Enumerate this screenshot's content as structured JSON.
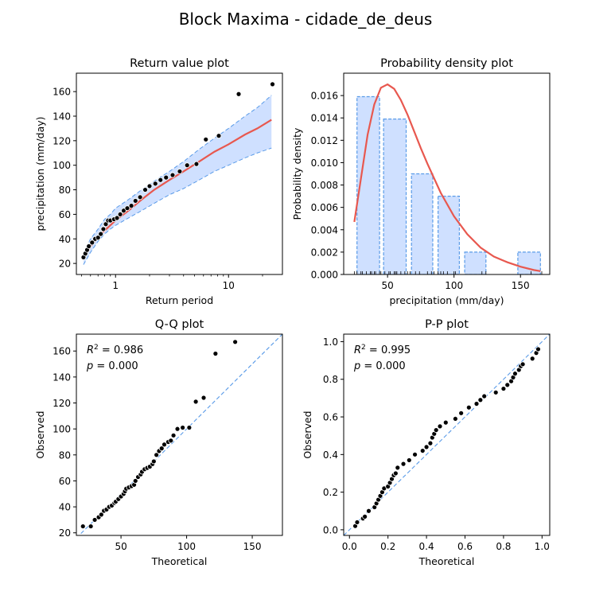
{
  "figure": {
    "title": "Block Maxima - cidade_de_deus",
    "colors": {
      "fit_line": "#e8584f",
      "band_fill": "#cfe0ff",
      "band_edge": "#5a9be8",
      "points": "#000000",
      "reference_line": "#5a9be8"
    }
  },
  "chart_data": [
    {
      "id": "return-value",
      "type": "scatter",
      "title": "Return value plot",
      "xlabel": "Return period",
      "ylabel": "precipitation (mm/day)",
      "xscale": "log",
      "xlim": [
        0.45,
        30
      ],
      "ylim": [
        11,
        175
      ],
      "xticks": [
        1,
        10
      ],
      "xtick_labels": [
        "1",
        "10"
      ],
      "yticks": [
        20,
        40,
        60,
        80,
        100,
        120,
        140,
        160
      ],
      "fit_line": {
        "x": [
          0.52,
          0.6,
          0.7,
          0.85,
          1.0,
          1.3,
          1.7,
          2.2,
          3.0,
          4.0,
          5.5,
          7.5,
          10,
          14,
          18,
          24
        ],
        "y": [
          24,
          34,
          42,
          49,
          55,
          63,
          72,
          80,
          88,
          95,
          103,
          111,
          117,
          125,
          130,
          137
        ]
      },
      "ci_upper": {
        "x": [
          0.52,
          0.6,
          0.7,
          0.8,
          0.9,
          1.0,
          1.3,
          1.7,
          2.2,
          3.0,
          4.0,
          5.5,
          7.5,
          10,
          14,
          18,
          24
        ],
        "y": [
          28,
          40,
          48,
          56,
          60,
          65,
          72,
          80,
          87,
          95,
          103,
          113,
          122,
          130,
          140,
          147,
          157
        ]
      },
      "ci_lower": {
        "x": [
          0.52,
          0.6,
          0.7,
          0.8,
          0.9,
          1.0,
          1.3,
          1.7,
          2.2,
          3.0,
          4.0,
          5.5,
          7.5,
          10,
          14,
          18,
          24
        ],
        "y": [
          19,
          29,
          38,
          44,
          48,
          51,
          57,
          63,
          69,
          76,
          81,
          88,
          95,
          100,
          106,
          110,
          114
        ]
      },
      "points": {
        "x": [
          0.52,
          0.54,
          0.56,
          0.58,
          0.62,
          0.66,
          0.7,
          0.74,
          0.78,
          0.82,
          0.86,
          0.9,
          0.97,
          1.03,
          1.1,
          1.18,
          1.27,
          1.38,
          1.5,
          1.65,
          1.83,
          2.0,
          2.25,
          2.5,
          2.8,
          3.2,
          3.7,
          4.3,
          5.2,
          6.3,
          8.2,
          12.3,
          24.5
        ],
        "y": [
          25,
          28,
          31,
          34,
          37,
          40,
          41,
          44,
          48,
          52,
          55,
          55,
          56,
          57,
          60,
          63,
          65,
          67,
          71,
          74,
          80,
          83,
          85,
          88,
          90,
          92,
          95,
          100,
          101,
          121,
          124,
          158,
          166
        ]
      }
    },
    {
      "id": "pdf",
      "type": "bar",
      "title": "Probability density plot",
      "xlabel": "precipitation (mm/day)",
      "ylabel": "Probability density",
      "xlim": [
        17,
        172
      ],
      "ylim": [
        0,
        0.018
      ],
      "xticks": [
        50,
        100,
        150
      ],
      "yticks": [
        0.0,
        0.002,
        0.004,
        0.006,
        0.008,
        0.01,
        0.012,
        0.014,
        0.016
      ],
      "ytick_labels": [
        "0.000",
        "0.002",
        "0.004",
        "0.006",
        "0.008",
        "0.010",
        "0.012",
        "0.014",
        "0.016"
      ],
      "bins": [
        [
          27,
          44
        ],
        [
          47,
          64
        ],
        [
          68,
          84
        ],
        [
          88,
          104
        ],
        [
          108,
          124
        ],
        [
          148,
          165
        ]
      ],
      "values": [
        0.0159,
        0.0139,
        0.009,
        0.007,
        0.002,
        0.002
      ],
      "density_curve": {
        "x": [
          25,
          30,
          35,
          40,
          45,
          50,
          55,
          60,
          65,
          70,
          75,
          80,
          90,
          100,
          110,
          120,
          130,
          140,
          150,
          160,
          165
        ],
        "y": [
          0.0047,
          0.0086,
          0.0125,
          0.0152,
          0.0167,
          0.017,
          0.0166,
          0.0156,
          0.0143,
          0.0128,
          0.0113,
          0.0099,
          0.0073,
          0.0052,
          0.0036,
          0.0024,
          0.0016,
          0.0011,
          0.0007,
          0.0004,
          0.0003
        ]
      },
      "rug": [
        25,
        27,
        30,
        31,
        34,
        37,
        38,
        40,
        41,
        44,
        45,
        48,
        51,
        52,
        55,
        56,
        57,
        60,
        63,
        65,
        67,
        71,
        74,
        80,
        83,
        85,
        88,
        90,
        92,
        95,
        100,
        101,
        121,
        124,
        158,
        166
      ]
    },
    {
      "id": "qq",
      "type": "scatter",
      "title": "Q-Q plot",
      "xlabel": "Theoretical",
      "ylabel": "Observed",
      "xlim": [
        16,
        173
      ],
      "ylim": [
        18,
        173
      ],
      "xticks": [
        50,
        100,
        150
      ],
      "yticks": [
        20,
        40,
        60,
        80,
        100,
        120,
        140,
        160
      ],
      "annotation": [
        "R^2 = 0.986",
        "p = 0.000"
      ],
      "reference_line": [
        [
          16,
          16
        ],
        [
          173,
          173
        ]
      ],
      "points": {
        "x": [
          21,
          27,
          30,
          33,
          35,
          37,
          39,
          41,
          43,
          45,
          46,
          48,
          50,
          52,
          53,
          54,
          56,
          58,
          60,
          61,
          63,
          65,
          66,
          68,
          70,
          72,
          74,
          75,
          77,
          79,
          81,
          83,
          86,
          88,
          90,
          93,
          97,
          102,
          107,
          113,
          122,
          137
        ],
        "y": [
          25,
          25,
          30,
          32,
          34,
          37,
          38,
          40,
          41,
          43,
          44,
          46,
          48,
          50,
          52,
          54,
          55,
          56,
          57,
          60,
          63,
          65,
          67,
          69,
          70,
          71,
          73,
          75,
          80,
          83,
          85,
          88,
          90,
          91,
          95,
          100,
          101,
          101,
          121,
          124,
          158,
          167
        ]
      }
    },
    {
      "id": "pp",
      "type": "scatter",
      "title": "P-P plot",
      "xlabel": "Theoretical",
      "ylabel": "Observed",
      "xlim": [
        -0.03,
        1.04
      ],
      "ylim": [
        -0.03,
        1.04
      ],
      "xticks": [
        0.0,
        0.2,
        0.4,
        0.6,
        0.8,
        1.0
      ],
      "xtick_labels": [
        "0.0",
        "0.2",
        "0.4",
        "0.6",
        "0.8",
        "1.0"
      ],
      "yticks": [
        0.0,
        0.2,
        0.4,
        0.6,
        0.8,
        1.0
      ],
      "ytick_labels": [
        "0.0",
        "0.2",
        "0.4",
        "0.6",
        "0.8",
        "1.0"
      ],
      "annotation": [
        "R^2 = 0.995",
        "p = 0.000"
      ],
      "reference_line": [
        [
          -0.03,
          -0.03
        ],
        [
          1.04,
          1.04
        ]
      ],
      "points": {
        "x": [
          0.03,
          0.04,
          0.07,
          0.08,
          0.1,
          0.13,
          0.14,
          0.15,
          0.16,
          0.17,
          0.18,
          0.2,
          0.21,
          0.22,
          0.23,
          0.24,
          0.25,
          0.28,
          0.31,
          0.34,
          0.38,
          0.4,
          0.42,
          0.43,
          0.44,
          0.45,
          0.47,
          0.5,
          0.55,
          0.58,
          0.62,
          0.66,
          0.68,
          0.7,
          0.76,
          0.8,
          0.82,
          0.84,
          0.85,
          0.86,
          0.88,
          0.89,
          0.9,
          0.95,
          0.97,
          0.98
        ],
        "y": [
          0.02,
          0.04,
          0.06,
          0.07,
          0.1,
          0.12,
          0.14,
          0.16,
          0.18,
          0.2,
          0.22,
          0.23,
          0.25,
          0.27,
          0.29,
          0.3,
          0.33,
          0.35,
          0.37,
          0.4,
          0.42,
          0.44,
          0.46,
          0.49,
          0.51,
          0.53,
          0.55,
          0.57,
          0.59,
          0.62,
          0.65,
          0.67,
          0.69,
          0.71,
          0.73,
          0.75,
          0.77,
          0.79,
          0.81,
          0.83,
          0.85,
          0.87,
          0.88,
          0.91,
          0.94,
          0.96
        ]
      }
    }
  ]
}
